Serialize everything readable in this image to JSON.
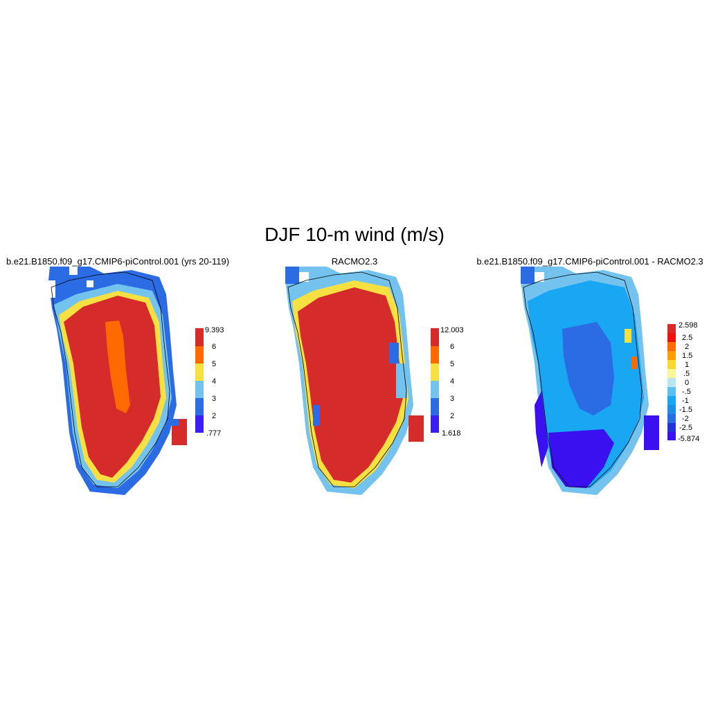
{
  "figure": {
    "title": "DJF 10-m wind (m/s)"
  },
  "panels": [
    {
      "title": "b.e21.B1850.f09_g17.CMIP6-piControl.001 (yrs 20-119)",
      "colorbar": {
        "colors": [
          "#3a1ff0",
          "#2b6be3",
          "#73c3ee",
          "#f7e041",
          "#ff6a00",
          "#d62b2b"
        ],
        "labels": [
          ".777",
          "2",
          "3",
          "4",
          "5",
          "6",
          "9.393"
        ]
      },
      "dominant_colors": [
        "#d62b2b",
        "#ff6a00",
        "#f7e041",
        "#73c3ee",
        "#2b6be3"
      ]
    },
    {
      "title": "RACMO2.3",
      "colorbar": {
        "colors": [
          "#3a1ff0",
          "#2b6be3",
          "#73c3ee",
          "#f7e041",
          "#ff6a00",
          "#d62b2b"
        ],
        "labels": [
          "1.618",
          "2",
          "3",
          "4",
          "5",
          "6",
          "12.003"
        ]
      },
      "dominant_colors": [
        "#d62b2b",
        "#f7e041",
        "#73c3ee",
        "#2b6be3"
      ]
    },
    {
      "title": "b.e21.B1850.f09_g17.CMIP6-piControl.001 - RACMO2.3",
      "colorbar": {
        "colors": [
          "#3a10f0",
          "#2233d9",
          "#2b6be3",
          "#1f8ee8",
          "#19a6f2",
          "#59c0f0",
          "#b9e6f5",
          "#fbf59a",
          "#fdd835",
          "#ffa000",
          "#ff6d00",
          "#f01010",
          "#d62b2b"
        ],
        "labels": [
          "-5.874",
          "-2.5",
          "-2",
          "-1.5",
          "-1",
          "-.5",
          "0",
          ".5",
          "1",
          "1.5",
          "2",
          "2.5",
          "2.598"
        ]
      },
      "dominant_colors": [
        "#19a6f2",
        "#2b6be3",
        "#3a10f0",
        "#73c3ee"
      ]
    }
  ]
}
